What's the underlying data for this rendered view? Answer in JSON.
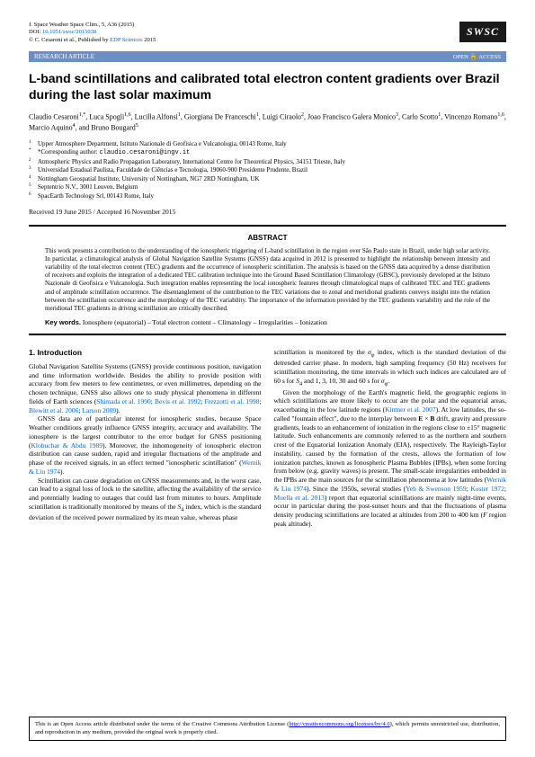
{
  "journal": {
    "citation": "J. Space Weather Space Clim., 5, A36 (2015)",
    "doi_label": "DOI: ",
    "doi": "10.1051/swsc/2015038",
    "copyright": "© C. Cesaroni et al., Published by EDP Sciences 2015",
    "logo": "SWSC"
  },
  "bar": {
    "left": "RESEARCH ARTICLE",
    "right_open": "OPEN",
    "right_access": "ACCESS"
  },
  "title": "L-band scintillations and calibrated total electron content gradients over Brazil during the last solar maximum",
  "authors_html": "Claudio Cesaroni<sup>1,*</sup>, Luca Spogli<sup>1,6</sup>, Lucilla Alfonsi<sup>1</sup>, Giorgiana De Franceschi<sup>1</sup>, Luigi Ciraolo<sup>2</sup>, Joao Francisco Galera Monico<sup>3</sup>, Carlo Scotto<sup>1</sup>, Vincenzo Romano<sup>1,6</sup>, Marcio Aquino<sup>4</sup>, and Bruno Bougard<sup>5</sup>",
  "affiliations": [
    "Upper Atmosphere Department, Istituto Nazionale di Geofisica e Vulcanologia, 00143 Rome, Italy",
    "Atmospheric Physics and Radio Propagation Laboratory, International Centre for Theoretical Physics, 34151 Trieste, Italy",
    "Universidad Estadual Paulista, Faculdade de Ciências e Tecnologia, 19060-900 Presidente Prudente, Brazil",
    "Nottingham Geospatial Institute, University of Nottingham, NG7 2RD Nottingham, UK",
    "Septentrio N.V., 3001 Leuven, Belgium",
    "SpacEarth Technology Srl, 00143 Rome, Italy"
  ],
  "corresp_label": "*Corresponding author: ",
  "corresp_email": "claudio.cesaroni@ingv.it",
  "dates": "Received 19 June 2015 / Accepted 16 November 2015",
  "abstract": {
    "heading": "ABSTRACT",
    "text": "This work presents a contribution to the understanding of the ionospheric triggering of L-band scintillation in the region over São Paulo state in Brazil, under high solar activity. In particular, a climatological analysis of Global Navigation Satellite Systems (GNSS) data acquired in 2012 is presented to highlight the relationship between intensity and variability of the total electron content (TEC) gradients and the occurrence of ionospheric scintillation. The analysis is based on the GNSS data acquired by a dense distribution of receivers and exploits the integration of a dedicated TEC calibration technique into the Ground Based Scintillation Climatology (GBSC), previously developed at the Istituto Nazionale di Geofisica e Vulcanologia. Such integration enables representing the local ionospheric features through climatological maps of calibrated TEC and TEC gradients and of amplitude scintillation occurrence. The disentanglement of the contribution to the TEC variations due to zonal and meridional gradients conveys insight into the relation between the scintillation occurrence and the morphology of the TEC variability. The importance of the information provided by the TEC gradients variability and the role of the meridional TEC gradients in driving scintillation are critically described.",
    "keywords_label": "Key words.",
    "keywords": "Ionosphere (equatorial) – Total electron content – Climatology – Irregularities – Ionization"
  },
  "body": {
    "section1": "1. Introduction",
    "col1": {
      "p1": "Global Navigation Satellite Systems (GNSS) provide continuous position, navigation and time information worldwide. Besides the ability to provide position with accuracy from few meters to few centimetres, or even millimetres, depending on the chosen technique, GNSS also allows one to study physical phenomena in different fields of Earth sciences (Shimada et al. 1990; Bevis et al. 1992; Frezzotti et al. 1998; Blewitt et al. 2006; Larson 2009).",
      "p2": "GNSS data are of particular interest for ionospheric studies, because Space Weather conditions greatly influence GNSS integrity, accuracy and availability. The ionosphere is the largest contributor to the error budget for GNSS positioning (Klobuchar & Abdu 1989). Moreover, the inhomogeneity of ionospheric electron distribution can cause sudden, rapid and irregular fluctuations of the amplitude and phase of the received signals, in an effect termed \"ionospheric scintillation\" (Wernik & Liu 1974).",
      "p3": "Scintillation can cause degradation on GNSS measurements and, in the worst case, can lead to a signal loss of lock to the satellite, affecting the availability of the service and potentially leading to outages that could last from minutes to hours. Amplitude scintillation is traditionally monitored by means of the S₄ index, which is the standard deviation of the received power normalized by its mean value, whereas phase"
    },
    "col2": {
      "p1": "scintillation is monitored by the σφ index, which is the standard deviation of the detrended carrier phase. In modern, high sampling frequency (50 Hz) receivers for scintillation monitoring, the time intervals in which such indices are calculated are of 60 s for S₄ and 1, 3, 10, 30 and 60 s for σφ.",
      "p2": "Given the morphology of the Earth's magnetic field, the geographic regions in which scintillations are more likely to occur are the polar and the equatorial areas, exacerbating in the low latitude regions (Kintner et al. 2007). At low latitudes, the so-called \"fountain effect\", due to the interplay between E × B drift, gravity and pressure gradients, leads to an enhancement of ionization in the regions close to ±15° magnetic latitude. Such enhancements are commonly referred to as the northern and southern crest of the Equatorial Ionization Anomaly (EIA), respectively. The Rayleigh-Taylor instability, caused by the formation of the crests, allows the formation of low ionization patches, known as Ionospheric Plasma Bubbles (IPBs), when some forcing from below (e.g. gravity waves) is present. The small-scale irregularities embedded in the IPBs are the main sources for the scintillation phenomena at low latitudes (Wernik & Liu 1974). Since the 1950s, several studies (Yeh & Swenson 1959; Koster 1972; Muella et al. 2013) report that equatorial scintillations are mainly night-time events, occur in particular during the post-sunset hours and that the fluctuations of plasma density producing scintillations are located at altitudes from 200 to 400 km (F region peak altitude)."
    }
  },
  "footer": {
    "text": "This is an Open Access article distributed under the terms of the Creative Commons Attribution License (http://creativecommons.org/licenses/by/4.0), which permits unrestricted use, distribution, and reproduction in any medium, provided the original work is properly cited."
  }
}
